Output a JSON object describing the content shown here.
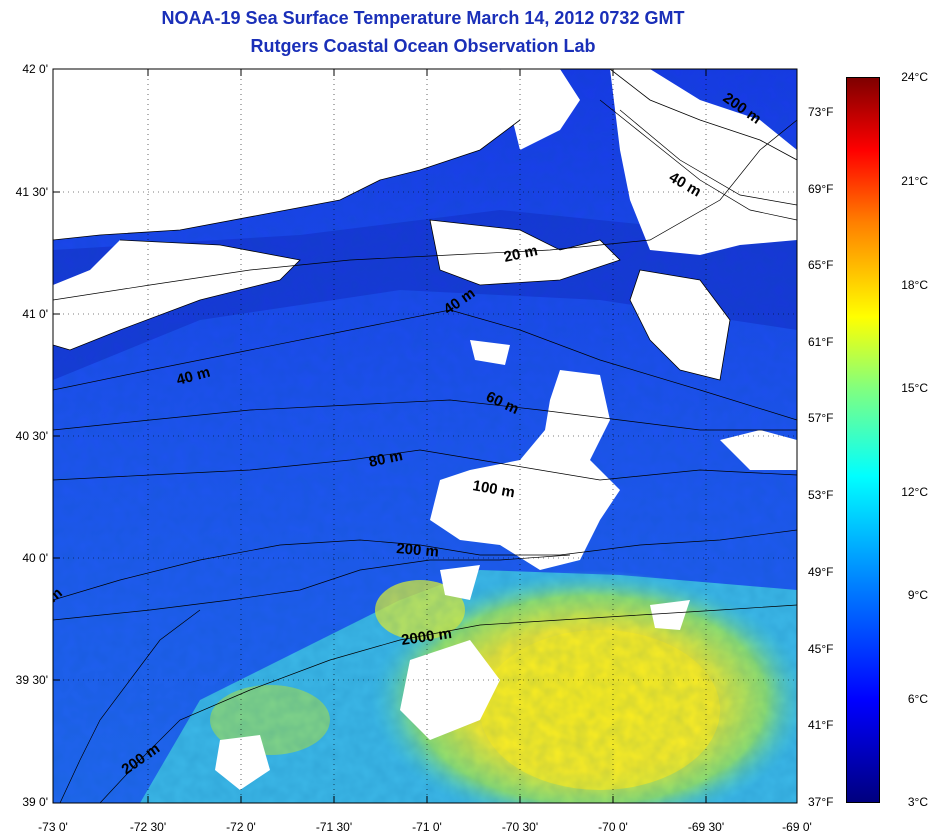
{
  "title_line1": "NOAA-19 Sea Surface Temperature March 14, 2012 0732 GMT",
  "title_line2": "Rutgers Coastal Ocean Observation Lab",
  "lat_labels": [
    "42 0'",
    "41 30'",
    "41 0'",
    "40 30'",
    "40 0'",
    "39 30'",
    "39 0'"
  ],
  "lon_labels": [
    "-73 0'",
    "-72 30'",
    "-72 0'",
    "-71 30'",
    "-71 0'",
    "-70 30'",
    "-70 0'",
    "-69 30'",
    "-69 0'"
  ],
  "fahrenheit_labels": [
    "73°F",
    "69°F",
    "65°F",
    "61°F",
    "57°F",
    "53°F",
    "49°F",
    "45°F",
    "41°F",
    "37°F"
  ],
  "celsius_labels": [
    "24°C",
    "21°C",
    "18°C",
    "15°C",
    "12°C",
    "9°C",
    "6°C",
    "3°C"
  ],
  "isobath_labels": [
    "200 m",
    "40 m",
    "20 m",
    "40 m",
    "40 m",
    "60 m",
    "80 m",
    "100 m",
    "200 m",
    "2000 m",
    "200 m",
    "m"
  ],
  "colors": {
    "title": "#1a2fb8",
    "cloud": "#ffffff",
    "land": "#ffffff",
    "water_cold": "#1e3fe0",
    "water_warm": "#ffe020"
  },
  "colorbar": {
    "min_c": 3,
    "max_c": 24,
    "colormap": "jet"
  }
}
